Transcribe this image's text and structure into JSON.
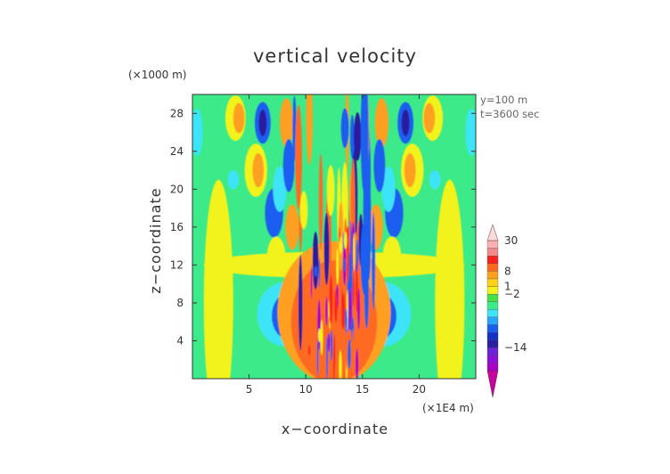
{
  "chart_data": {
    "type": "heatmap",
    "title": "vertical velocity",
    "xlabel": "x−coordinate",
    "ylabel": "z−coordinate",
    "x_unit": "(×1E4 m)",
    "y_unit": "(×1000 m)",
    "annotations": [
      "y=100 m",
      "t=3600 sec"
    ],
    "xlim": [
      0,
      25
    ],
    "ylim": [
      0,
      30
    ],
    "xticks": [
      5,
      10,
      15,
      20
    ],
    "xtick_labels": [
      "5",
      "10",
      "15",
      "20"
    ],
    "yticks": [
      4,
      8,
      12,
      16,
      20,
      24,
      28
    ],
    "ytick_labels": [
      "4",
      "8",
      "12",
      "16",
      "20",
      "24",
      "28"
    ],
    "colorbar": {
      "tick_labels": [
        {
          "value": 30,
          "label": "30"
        },
        {
          "value": 8,
          "label": "8"
        },
        {
          "value": 1,
          "label": "1"
        },
        {
          "value": -2,
          "label": "−2"
        },
        {
          "value": -14,
          "label": "−14"
        }
      ],
      "colors": [
        "#c8009e",
        "#a900c7",
        "#8a10d8",
        "#6a23d9",
        "#2a1f9f",
        "#1430c8",
        "#1a5ef0",
        "#26a6ff",
        "#3ee4f8",
        "#3cea8a",
        "#48e046",
        "#f2f21f",
        "#ffd21a",
        "#ffa020",
        "#ff6a20",
        "#ff2020",
        "#f08a8a",
        "#ffb0b0",
        "#ffdada"
      ]
    },
    "colormap": {
      "background": "#3cea8a",
      "positive_strong": "#ff6a20",
      "positive": "#ffa020",
      "positive_weak": "#f2f21f",
      "negative_weak": "#3ee4f8",
      "negative": "#1a5ef0",
      "negative_strong": "#2a1f9f",
      "extreme_negative": "#a900c7",
      "extreme_positive": "#ff2020"
    }
  }
}
